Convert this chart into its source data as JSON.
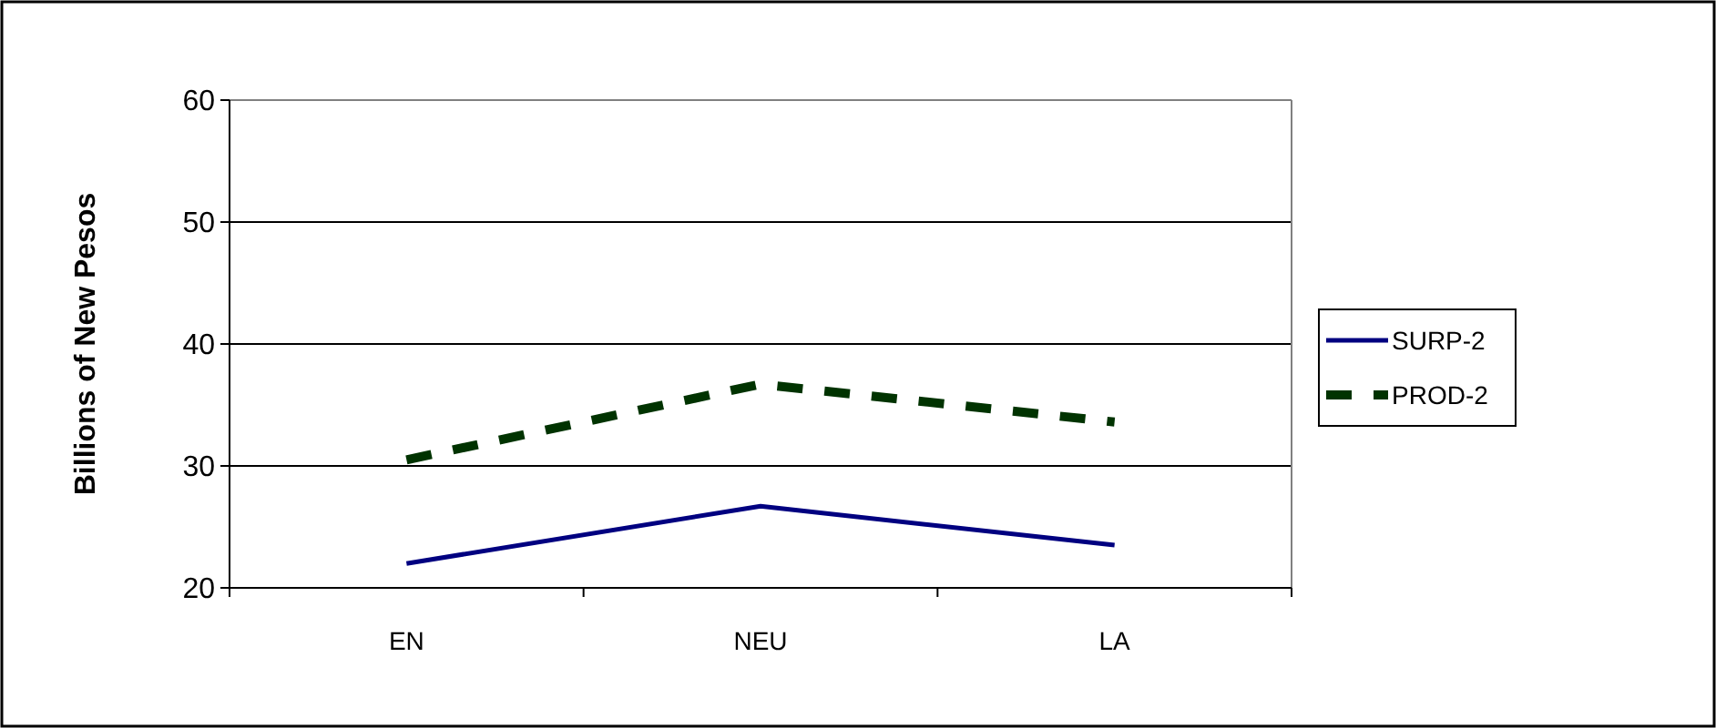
{
  "chart_data": {
    "type": "line",
    "ylabel": "Billions of New Pesos",
    "categories": [
      "EN",
      "NEU",
      "LA"
    ],
    "ylim": [
      20,
      60
    ],
    "yticks": [
      20,
      30,
      40,
      50,
      60
    ],
    "grid": "y",
    "legend": "right",
    "series": [
      {
        "name": "SURP-2",
        "color": "#000080",
        "values": [
          22.0,
          26.7,
          23.5
        ],
        "line_style": "solid"
      },
      {
        "name": "PROD-2",
        "color": "#003300",
        "values": [
          30.5,
          36.7,
          33.6
        ],
        "line_style": "dashed"
      }
    ]
  }
}
